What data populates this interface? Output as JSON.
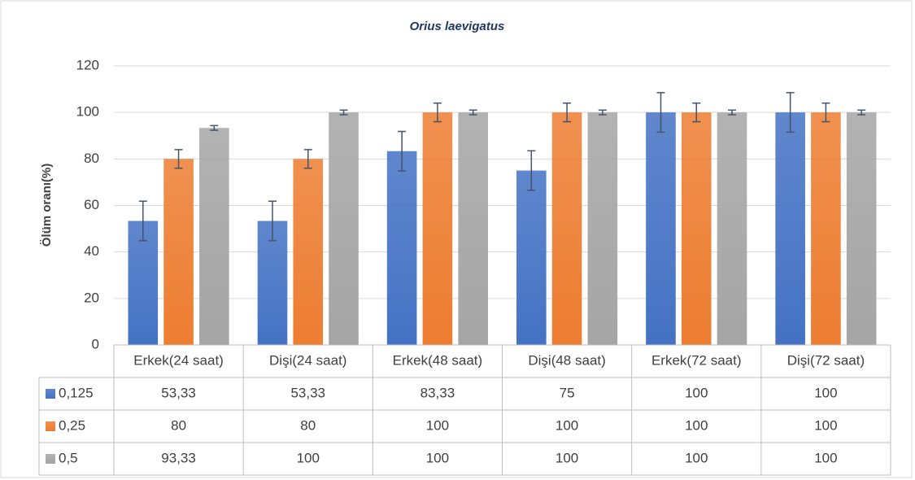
{
  "chart_data": {
    "type": "bar",
    "title": "Orius laevigatus",
    "y_label": "Ölüm oranı(%)",
    "categories": [
      "Erkek(24 saat)",
      "Dişi(24 saat)",
      "Erkek(48 saat)",
      "Dişi(48 saat)",
      "Erkek(72 saat)",
      "Dişi(72 saat)"
    ],
    "series": [
      {
        "name": "0,125",
        "color": "#4472c4",
        "values": [
          53.33,
          53.33,
          83.33,
          75,
          100,
          100
        ],
        "value_labels": [
          "53,33",
          "53,33",
          "83,33",
          "75",
          "100",
          "100"
        ],
        "errors": [
          8.5,
          8.5,
          8.5,
          8.5,
          8.5,
          8.5
        ]
      },
      {
        "name": "0,25",
        "color": "#ed7d31",
        "values": [
          80,
          80,
          100,
          100,
          100,
          100
        ],
        "value_labels": [
          "80",
          "80",
          "100",
          "100",
          "100",
          "100"
        ],
        "errors": [
          4,
          4,
          4,
          4,
          4,
          4
        ]
      },
      {
        "name": "0,5",
        "color": "#a5a5a5",
        "values": [
          93.33,
          100,
          100,
          100,
          100,
          100
        ],
        "value_labels": [
          "93,33",
          "100",
          "100",
          "100",
          "100",
          "100"
        ],
        "errors": [
          1,
          1,
          1,
          1,
          1,
          1
        ]
      }
    ],
    "ylim": [
      0,
      120
    ],
    "yticks": [
      0,
      20,
      40,
      60,
      80,
      100,
      120
    ],
    "grid": true
  }
}
